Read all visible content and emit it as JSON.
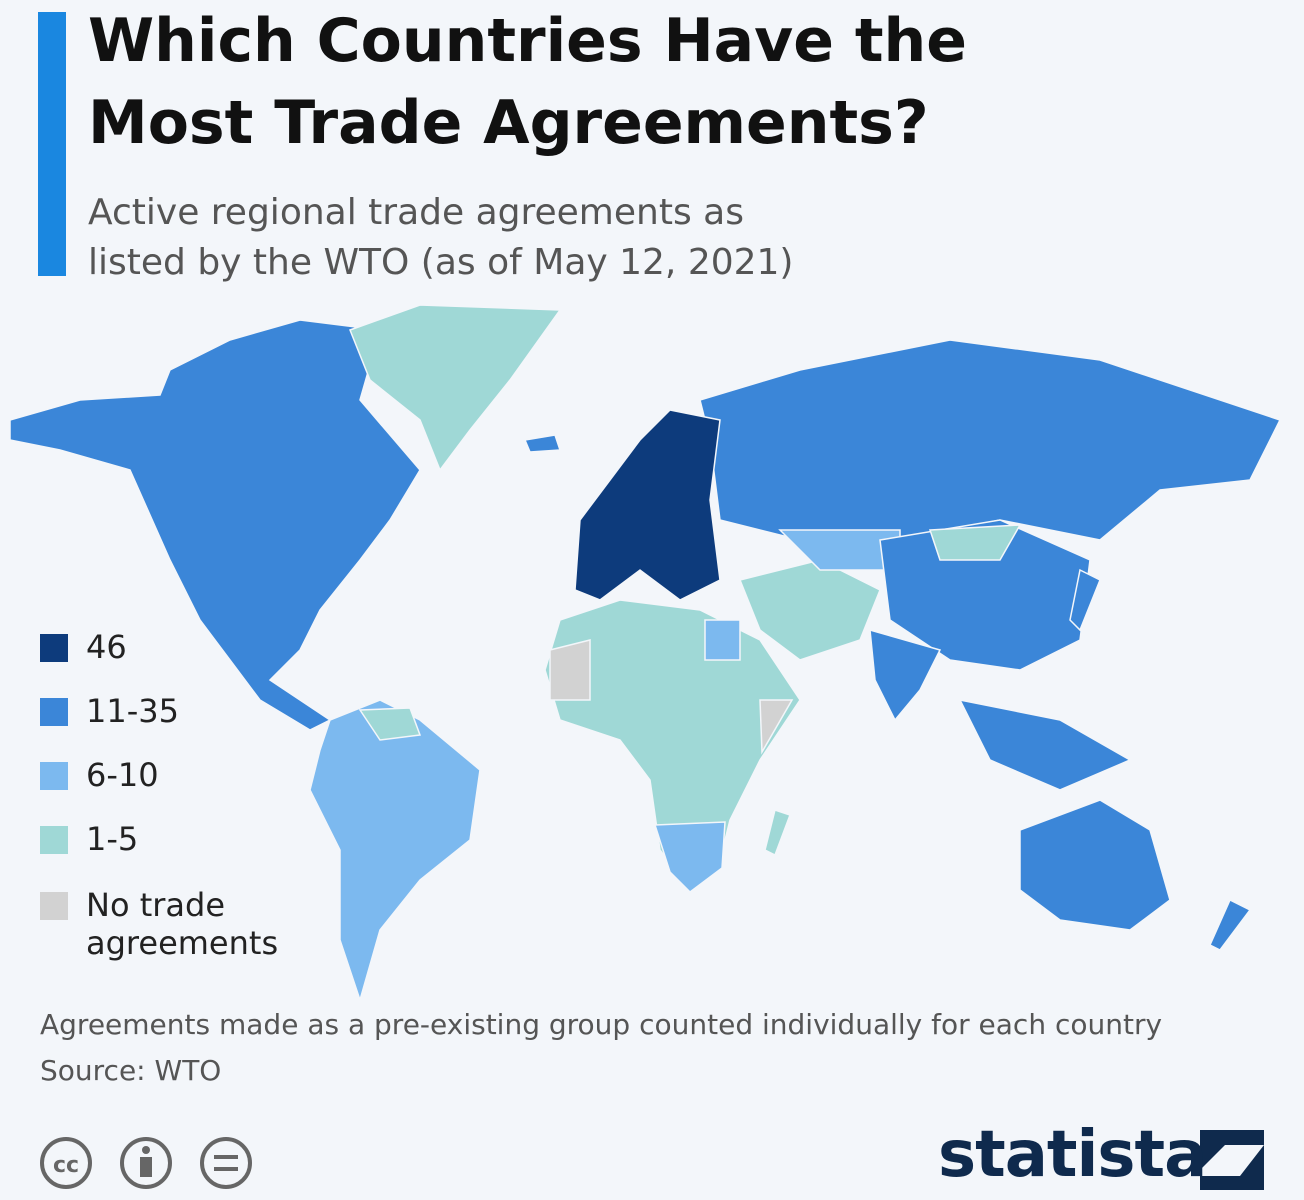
{
  "header": {
    "title": "Which Countries Have the Most Trade Agreements?",
    "subtitle": "Active regional trade agreements as listed by the WTO (as of May 12, 2021)"
  },
  "legend": [
    {
      "label": "46",
      "color": "#0d3b7c"
    },
    {
      "label": "11-35",
      "color": "#3b86d8"
    },
    {
      "label": "6-10",
      "color": "#7cb9ef"
    },
    {
      "label": "1-5",
      "color": "#9fd8d6"
    },
    {
      "label": "No trade agreements",
      "color": "#d2d2d2"
    }
  ],
  "footer": {
    "note": "Agreements made as a pre-existing group counted individually for each country",
    "source": "Source: WTO",
    "license_icon": "cc",
    "brand": "statista"
  }
}
